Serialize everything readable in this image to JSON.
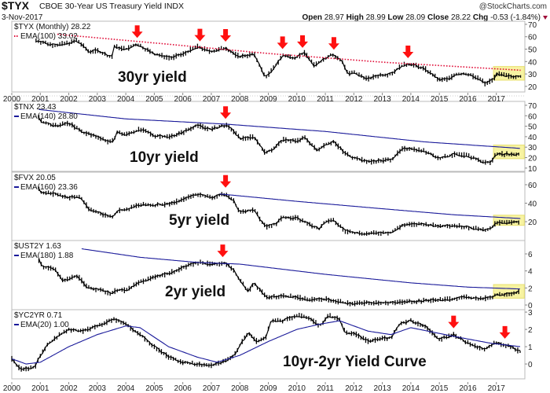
{
  "header": {
    "symbol": "$TYX",
    "name": "CBOE 30-Year US Treasury Yield INDX",
    "date": "3-Nov-2017",
    "watermark": "@StockCharts.com",
    "open_label": "Open",
    "open": "28.97",
    "high_label": "High",
    "high": "28.99",
    "low_label": "Low",
    "low": "28.09",
    "close_label": "Close",
    "close": "28.22",
    "chg_label": "Chg",
    "chg": "-0.53 (-1.84%)"
  },
  "colors": {
    "price": "#000000",
    "ema_red": "#e0103a",
    "ema_blue": "#1a1a9a",
    "arrow": "#ff1010",
    "highlight": "#f5f08a"
  },
  "chart_data": [
    {
      "type": "line",
      "panel": "TYX",
      "legend": "$TYX (Monthly) 28.22",
      "ema_legend": "EMA(100) 33.02",
      "ema_style": "dotted-red",
      "annotation": "30yr yield",
      "ylim": [
        15.5,
        72.5
      ],
      "yticks": [
        "20",
        "30",
        "40",
        "50",
        "60",
        "70"
      ],
      "series": [
        2000.85,
        57,
        2001,
        56,
        2001.5,
        53,
        2002,
        55,
        2002.3,
        57,
        2002.7,
        48,
        2003,
        49,
        2003.5,
        43,
        2003.6,
        52,
        2004,
        50,
        2004.4,
        54,
        2005,
        46,
        2005.6,
        43,
        2006,
        46,
        2006.5,
        52,
        2007,
        48,
        2007.5,
        51,
        2007.8,
        46,
        2008,
        44,
        2008.5,
        46,
        2008.9,
        27,
        2009.2,
        35,
        2009.5,
        45,
        2009.9,
        43,
        2010.3,
        47,
        2010.6,
        37,
        2010.9,
        41,
        2011.2,
        46,
        2011.6,
        40,
        2011.8,
        30,
        2012,
        31,
        2012.5,
        26,
        2012.9,
        29,
        2013.3,
        30,
        2013.7,
        37,
        2014,
        38,
        2014.5,
        34,
        2015,
        25,
        2015.3,
        26,
        2015.6,
        30,
        2016,
        30,
        2016.5,
        25,
        2016.6,
        22,
        2016.9,
        26,
        2017,
        30,
        2017.5,
        28,
        2017.85,
        28.2
      ],
      "ema": [
        2001.6,
        62,
        2005,
        55,
        2009,
        46.5,
        2013,
        39.5,
        2017.85,
        33
      ],
      "arrows": [
        2004.4,
        2006.6,
        2007.5,
        2009.5,
        2010.2,
        2011.3,
        2013.9
      ],
      "highlight": {
        "x": [
          2016.9,
          2017.98
        ],
        "y": [
          25,
          36
        ]
      }
    },
    {
      "type": "line",
      "panel": "TNX",
      "legend": "$TNX 23.43",
      "ema_legend": "EMA(140) 28.80",
      "ema_style": "solid-blue",
      "annotation": "10yr yield",
      "ylim": [
        6.9,
        73.7
      ],
      "yticks": [
        "10",
        "20",
        "30",
        "40",
        "50",
        "60",
        "70"
      ],
      "series": [
        2000.95,
        58,
        2001,
        55,
        2001.5,
        50,
        2002,
        53,
        2002.5,
        44,
        2003,
        40,
        2003.5,
        34,
        2003.7,
        44,
        2004,
        42,
        2004.5,
        47,
        2005,
        41,
        2005.5,
        40,
        2006,
        44,
        2006.5,
        51,
        2007,
        47,
        2007.5,
        51,
        2007.8,
        45,
        2008,
        38,
        2008.5,
        40,
        2008.9,
        24,
        2009.3,
        31,
        2009.5,
        37,
        2010,
        36,
        2010.3,
        39,
        2010.7,
        27,
        2011,
        33,
        2011.3,
        35,
        2011.7,
        24,
        2012,
        20,
        2012.5,
        16,
        2012.9,
        17,
        2013.3,
        18,
        2013.7,
        28,
        2014,
        29,
        2014.5,
        26,
        2015,
        19,
        2015.5,
        23,
        2016,
        22,
        2016.5,
        16,
        2016.8,
        15,
        2016.9,
        20,
        2017,
        24,
        2017.5,
        23,
        2017.85,
        23.4
      ],
      "ema": [
        2000.95,
        66,
        2004,
        57,
        2007.5,
        52,
        2011,
        45,
        2014.5,
        35,
        2017.85,
        28.8
      ],
      "arrows": [
        2007.5
      ],
      "highlight": {
        "x": [
          2016.9,
          2017.98
        ],
        "y": [
          19,
          32
        ]
      }
    },
    {
      "type": "line",
      "panel": "FVX",
      "legend": "$FVX 20.05",
      "ema_legend": "EMA(160) 23.36",
      "ema_style": "solid-blue",
      "annotation": "5yr yield",
      "ylim": [
        -0.4,
        73.6
      ],
      "yticks": [
        "20",
        "40",
        "60"
      ],
      "series": [
        2000.95,
        56,
        2001,
        52,
        2001.5,
        50,
        2002,
        46,
        2002.4,
        47,
        2002.7,
        34,
        2003,
        30,
        2003.5,
        25,
        2003.8,
        33,
        2004,
        32,
        2004.4,
        38,
        2005,
        38,
        2005.5,
        39,
        2006,
        44,
        2006.5,
        50,
        2007,
        46,
        2007.5,
        50,
        2007.8,
        42,
        2008,
        30,
        2008.5,
        33,
        2008.9,
        14,
        2009.3,
        18,
        2009.5,
        25,
        2010,
        24,
        2010.5,
        16,
        2010.8,
        12,
        2011,
        20,
        2011.3,
        21,
        2011.7,
        10,
        2012,
        8,
        2012.5,
        7,
        2013,
        8,
        2013.3,
        8,
        2013.7,
        16,
        2014,
        17,
        2014.5,
        17,
        2015,
        15,
        2015.5,
        16,
        2016,
        14,
        2016.5,
        11,
        2016.8,
        12,
        2017,
        19,
        2017.5,
        19,
        2017.85,
        20.05
      ],
      "ema": [
        2007.3,
        50,
        2010,
        42,
        2013,
        34,
        2015.5,
        27.5,
        2017.85,
        23.4
      ],
      "arrows": [
        2007.5
      ],
      "highlight": {
        "x": [
          2016.9,
          2017.98
        ],
        "y": [
          16,
          27
        ]
      }
    },
    {
      "type": "line",
      "panel": "UST2Y",
      "legend": "$UST2Y 1.63",
      "ema_legend": "EMA(180) 1.88",
      "ema_style": "solid-blue",
      "annotation": "2yr yield",
      "ylim": [
        -0.55,
        7.57
      ],
      "yticks": [
        "0",
        "2",
        "4",
        "6"
      ],
      "series": [
        2000.95,
        5.3,
        2001.1,
        4.5,
        2001.5,
        4.2,
        2001.8,
        2.8,
        2002,
        3.1,
        2002.3,
        3.5,
        2002.6,
        2.2,
        2003,
        1.8,
        2003.5,
        1.4,
        2003.7,
        1.8,
        2004,
        1.7,
        2004.5,
        2.7,
        2005,
        3.3,
        2005.5,
        3.7,
        2006,
        4.4,
        2006.5,
        5.0,
        2007,
        4.8,
        2007.5,
        4.9,
        2007.8,
        4.0,
        2008,
        2.9,
        2008.3,
        1.6,
        2008.5,
        2.6,
        2008.9,
        1.0,
        2009,
        0.9,
        2009.5,
        1.1,
        2010,
        0.9,
        2010.5,
        0.6,
        2011,
        0.7,
        2011.5,
        0.4,
        2011.8,
        0.2,
        2013,
        0.25,
        2014,
        0.4,
        2015,
        0.6,
        2016,
        0.9,
        2016.5,
        0.7,
        2016.9,
        1.0,
        2017,
        1.2,
        2017.5,
        1.35,
        2017.85,
        1.63
      ],
      "ema": [
        2002.45,
        6.6,
        2004.5,
        5.6,
        2006.5,
        5.0,
        2008,
        4.8,
        2011,
        3.6,
        2014,
        2.6,
        2016,
        2.1,
        2017.85,
        1.88
      ],
      "arrows": [
        2007.4
      ],
      "highlight": {
        "x": [
          2016.9,
          2017.98
        ],
        "y": [
          0.8,
          2.4
        ]
      }
    },
    {
      "type": "line",
      "panel": "YC2YR",
      "legend": "$YC2YR 0.71",
      "ema_legend": "EMA(20) 1.00",
      "ema_style": "solid-blue",
      "annotation": "10yr-2yr Yield Curve",
      "ylim": [
        -0.86,
        3.14
      ],
      "yticks": [
        "0",
        "1",
        "2",
        "3"
      ],
      "series": [
        2000,
        0.3,
        2000.3,
        -0.3,
        2000.8,
        -0.2,
        2001,
        0.5,
        2001.3,
        1.2,
        2001.7,
        1.7,
        2002,
        2.0,
        2002.5,
        1.9,
        2003,
        2.2,
        2003.6,
        2.6,
        2004,
        2.3,
        2004.5,
        1.7,
        2005,
        1.0,
        2005.5,
        0.4,
        2006,
        0.1,
        2006.5,
        0.0,
        2007,
        -0.1,
        2007.4,
        0.1,
        2007.8,
        0.5,
        2008,
        1.1,
        2008.3,
        1.8,
        2008.6,
        1.3,
        2008.9,
        1.5,
        2009.1,
        2.5,
        2009.5,
        2.5,
        2010,
        2.8,
        2010.4,
        2.7,
        2010.8,
        2.2,
        2011.1,
        2.8,
        2011.5,
        2.6,
        2011.7,
        1.8,
        2012,
        1.8,
        2012.5,
        1.3,
        2013,
        1.5,
        2013.3,
        1.5,
        2013.6,
        2.3,
        2014,
        2.5,
        2014.5,
        2.2,
        2015,
        1.4,
        2015.5,
        1.7,
        2016,
        1.2,
        2016.6,
        0.85,
        2017,
        1.25,
        2017.5,
        1.0,
        2017.85,
        0.71
      ],
      "ema": [
        2000,
        0.3,
        2000.5,
        0.0,
        2001,
        0.1,
        2002,
        1.0,
        2003,
        1.7,
        2004,
        2.2,
        2004.5,
        2.1,
        2005.5,
        1.0,
        2006.5,
        0.4,
        2007.2,
        0.1,
        2008,
        0.5,
        2009,
        1.3,
        2010,
        2.0,
        2010.8,
        2.3,
        2011.5,
        2.5,
        2012.5,
        1.9,
        2013.3,
        1.7,
        2014,
        2.1,
        2015.5,
        1.6,
        2016.8,
        1.2,
        2017.85,
        1.0
      ],
      "arrows": [
        2015.5,
        2017.3
      ],
      "highlight": null
    }
  ],
  "x_axis": {
    "labels": [
      "2000",
      "2001",
      "2002",
      "2003",
      "2004",
      "2005",
      "2006",
      "2007",
      "2008",
      "2009",
      "2010",
      "2011",
      "2012",
      "2013",
      "2014",
      "2015",
      "2016",
      "2017"
    ],
    "range": [
      2000,
      2018
    ]
  }
}
